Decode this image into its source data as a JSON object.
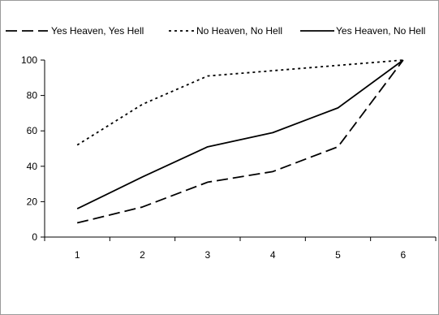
{
  "chart_data": {
    "type": "line",
    "x": [
      1,
      2,
      3,
      4,
      5,
      6
    ],
    "series": [
      {
        "name": "Yes Heaven, Yes Hell",
        "values": [
          8,
          17,
          31,
          37,
          51,
          100
        ],
        "style": "dashed",
        "color": "#000000"
      },
      {
        "name": "No Heaven, No Hell",
        "values": [
          52,
          75,
          91,
          94,
          97,
          100
        ],
        "style": "dotted",
        "color": "#000000"
      },
      {
        "name": "Yes Heaven, No Hell",
        "values": [
          16,
          34,
          51,
          59,
          73,
          100
        ],
        "style": "solid",
        "color": "#000000"
      }
    ],
    "ylim": [
      0,
      100
    ],
    "yticks": [
      0,
      20,
      40,
      60,
      80,
      100
    ],
    "xticks": [
      1,
      2,
      3,
      4,
      5,
      6
    ],
    "legend_position": "top",
    "grid": false
  }
}
